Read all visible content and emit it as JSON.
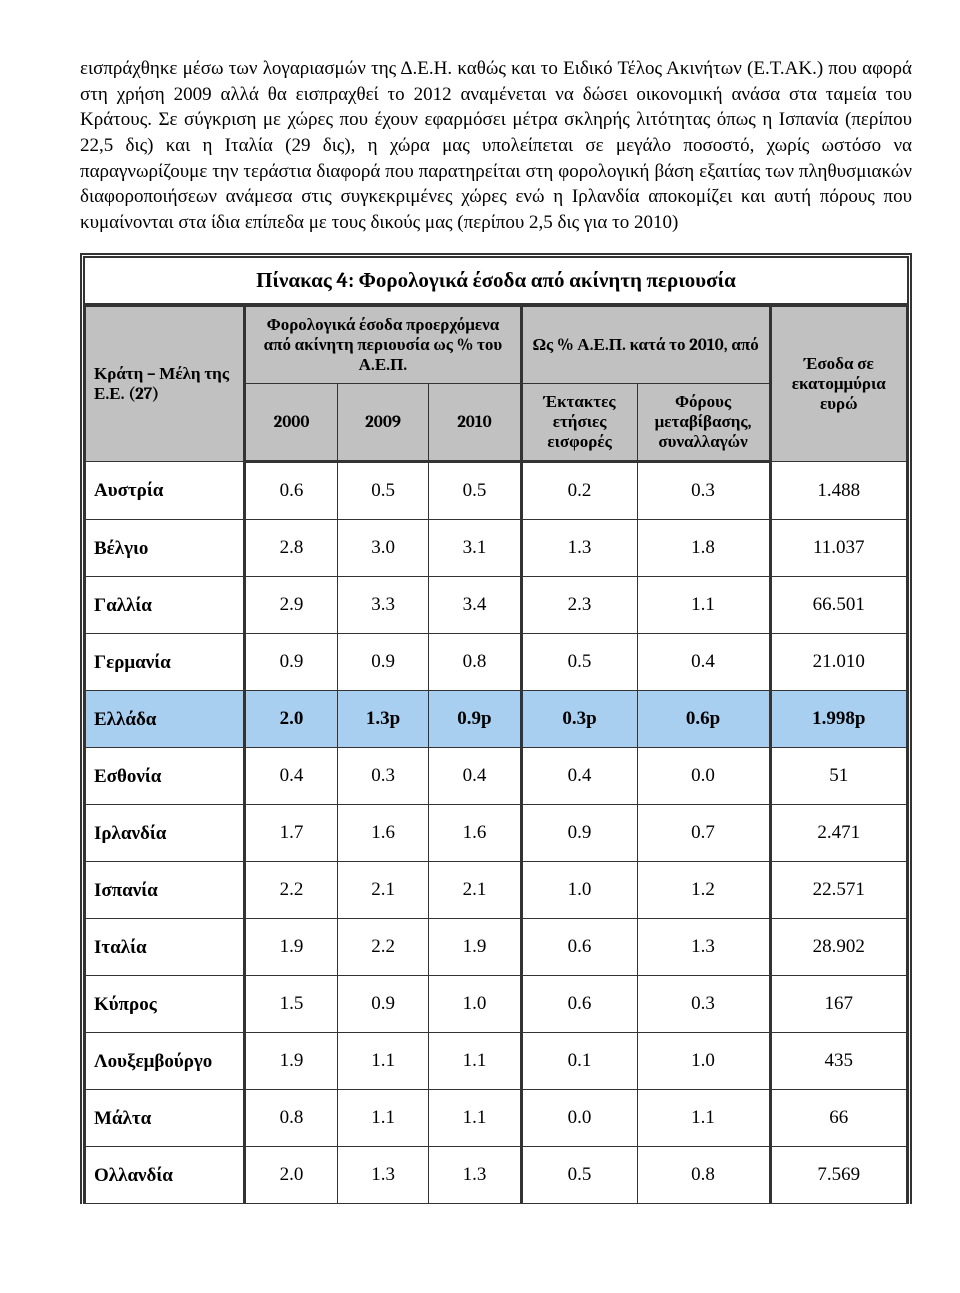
{
  "paragraph": "εισπράχθηκε μέσω των λογαριασμών της Δ.Ε.Η. καθώς και το Ειδικό Τέλος Ακινήτων (Ε.Τ.ΑΚ.) που αφορά στη χρήση 2009 αλλά θα εισπραχθεί το 2012 αναμένεται να δώσει οικονομική ανάσα στα ταμεία του Κράτους. Σε σύγκριση με χώρες που έχουν εφαρμόσει μέτρα σκληρής λιτότητας όπως η Ισπανία (περίπου 22,5 δις) και η Ιταλία (29 δις), η χώρα μας υπολείπεται σε μεγάλο ποσοστό, χωρίς ωστόσο να παραγνωρίζουμε την τεράστια διαφορά που παρατηρείται στη φορολογική βάση εξαιτίας των πληθυσμιακών διαφοροποιήσεων ανάμεσα στις συγκεκριμένες χώρες ενώ η Ιρλανδία αποκομίζει και αυτή πόρους που κυμαίνονται στα ίδια επίπεδα με τους δικούς μας (περίπου 2,5 δις για το 2010)",
  "table_title": "Πίνακας 4: Φορολογικά έσοδα από  ακίνητη περιουσία",
  "headers": {
    "country": "Κράτη – Μέλη της  Ε.Ε. (27)",
    "group_pct_gdp": "Φορολογικά έσοδα προερχόμενα από ακίνητη περιουσία ως % του  Α.Ε.Π.",
    "group_pct_2010": "Ως % Α.Ε.Π. κατά το 2010, από",
    "income_eur": "Έσοδα σε εκατομμύρια ευρώ",
    "y2000": "2000",
    "y2009": "2009",
    "y2010": "2010",
    "annual": "Έκτακτες ετήσιες εισφορές",
    "transfer": "Φόρους μεταβίβασης, συναλλαγών"
  },
  "rows": [
    {
      "country": "Αυστρία",
      "v": [
        "0.6",
        "0.5",
        "0.5",
        "0.2",
        "0.3",
        "1.488"
      ],
      "hl": false
    },
    {
      "country": "Βέλγιο",
      "v": [
        "2.8",
        "3.0",
        "3.1",
        "1.3",
        "1.8",
        "11.037"
      ],
      "hl": false
    },
    {
      "country": "Γαλλία",
      "v": [
        "2.9",
        "3.3",
        "3.4",
        "2.3",
        "1.1",
        "66.501"
      ],
      "hl": false
    },
    {
      "country": "Γερμανία",
      "v": [
        "0.9",
        "0.9",
        "0.8",
        "0.5",
        "0.4",
        "21.010"
      ],
      "hl": false
    },
    {
      "country": "Ελλάδα",
      "v": [
        "2.0",
        "1.3p",
        "0.9p",
        "0.3p",
        "0.6p",
        "1.998p"
      ],
      "hl": true
    },
    {
      "country": "Εσθονία",
      "v": [
        "0.4",
        "0.3",
        "0.4",
        "0.4",
        "0.0",
        "51"
      ],
      "hl": false
    },
    {
      "country": "Ιρλανδία",
      "v": [
        "1.7",
        "1.6",
        "1.6",
        "0.9",
        "0.7",
        "2.471"
      ],
      "hl": false
    },
    {
      "country": "Ισπανία",
      "v": [
        "2.2",
        "2.1",
        "2.1",
        "1.0",
        "1.2",
        "22.571"
      ],
      "hl": false
    },
    {
      "country": "Ιταλία",
      "v": [
        "1.9",
        "2.2",
        "1.9",
        "0.6",
        "1.3",
        "28.902"
      ],
      "hl": false
    },
    {
      "country": "Κύπρος",
      "v": [
        "1.5",
        "0.9",
        "1.0",
        "0.6",
        "0.3",
        "167"
      ],
      "hl": false
    },
    {
      "country": "Λουξεμβούργο",
      "v": [
        "1.9",
        "1.1",
        "1.1",
        "0.1",
        "1.0",
        "435"
      ],
      "hl": false
    },
    {
      "country": "Μάλτα",
      "v": [
        "0.8",
        "1.1",
        "1.1",
        "0.0",
        "1.1",
        "66"
      ],
      "hl": false
    },
    {
      "country": "Ολλανδία",
      "v": [
        "2.0",
        "1.3",
        "1.3",
        "0.5",
        "0.8",
        "7.569"
      ],
      "hl": false
    }
  ],
  "colors": {
    "header_bg": "#c1c1c1",
    "highlight_bg": "#a8cef0",
    "border": "#333333",
    "page_bg": "#ffffff"
  }
}
